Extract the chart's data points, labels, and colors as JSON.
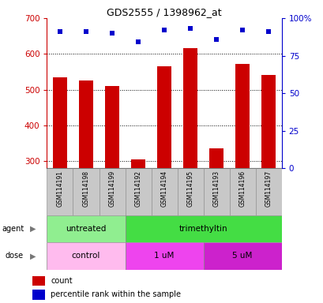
{
  "title": "GDS2555 / 1398962_at",
  "samples": [
    "GSM114191",
    "GSM114198",
    "GSM114199",
    "GSM114192",
    "GSM114194",
    "GSM114195",
    "GSM114193",
    "GSM114196",
    "GSM114197"
  ],
  "bar_values": [
    535,
    526,
    511,
    305,
    565,
    617,
    335,
    572,
    540
  ],
  "dot_values": [
    91,
    91,
    90,
    84,
    92,
    93,
    86,
    92,
    91
  ],
  "bar_color": "#cc0000",
  "dot_color": "#0000cc",
  "ymin": 280,
  "ymax": 700,
  "yticks_left": [
    300,
    400,
    500,
    600,
    700
  ],
  "yticks_right": [
    0,
    25,
    50,
    75,
    100
  ],
  "yticks_right_labels": [
    "0",
    "25",
    "50",
    "75",
    "100%"
  ],
  "grid_values": [
    300,
    400,
    500,
    600
  ],
  "agent_groups": [
    {
      "label": "untreated",
      "start": 0,
      "end": 3,
      "color": "#90ee90"
    },
    {
      "label": "trimethyltin",
      "start": 3,
      "end": 9,
      "color": "#44dd44"
    }
  ],
  "dose_groups": [
    {
      "label": "control",
      "start": 0,
      "end": 3,
      "color": "#ffbbee"
    },
    {
      "label": "1 uM",
      "start": 3,
      "end": 6,
      "color": "#ee44ee"
    },
    {
      "label": "5 uM",
      "start": 6,
      "end": 9,
      "color": "#cc22cc"
    }
  ],
  "legend_count_color": "#cc0000",
  "legend_dot_color": "#0000cc",
  "tick_color_left": "#cc0000",
  "tick_color_right": "#0000cc",
  "sample_box_color": "#c8c8c8",
  "sample_box_border": "#888888"
}
